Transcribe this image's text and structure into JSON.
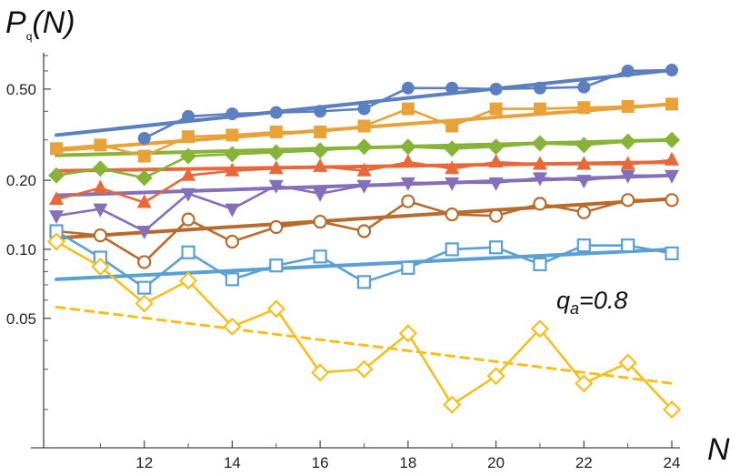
{
  "chart_data": {
    "type": "line",
    "title": "",
    "ylabel": {
      "main": "P",
      "sub": "q",
      "rest": "(N)"
    },
    "xlabel": "N",
    "yscale": "log",
    "xlim": [
      10,
      24
    ],
    "ylim": [
      0.014,
      0.72
    ],
    "x_ticks": [
      12,
      14,
      16,
      18,
      20,
      22,
      24
    ],
    "x_tick_labels": [
      "12",
      "14",
      "16",
      "18",
      "20",
      "22",
      "24"
    ],
    "y_ticks": [
      0.05,
      0.1,
      0.2,
      0.5
    ],
    "y_tick_labels": [
      "0.05",
      "0.10",
      "0.20",
      "0.50"
    ],
    "grid": false,
    "annotation": {
      "main": "q",
      "sub": "a",
      "rest": "=0.8"
    },
    "x": [
      10,
      11,
      12,
      13,
      14,
      15,
      16,
      17,
      18,
      19,
      20,
      21,
      22,
      23,
      24
    ],
    "series": [
      {
        "color": "#5b7fbf",
        "marker": "circle-filled",
        "values": [
          null,
          null,
          0.305,
          0.38,
          0.39,
          0.395,
          0.4,
          0.41,
          0.505,
          0.505,
          0.5,
          0.505,
          0.51,
          0.6,
          0.605
        ],
        "fit": [
          0.315,
          0.605
        ]
      },
      {
        "color": "#e8a23a",
        "marker": "square-filled",
        "values": [
          0.275,
          0.285,
          0.255,
          0.31,
          0.315,
          0.325,
          0.325,
          0.345,
          0.41,
          0.345,
          0.41,
          0.41,
          0.415,
          0.42,
          0.43
        ],
        "fit": [
          0.27,
          0.43
        ]
      },
      {
        "color": "#86b338",
        "marker": "diamond-filled",
        "values": [
          0.21,
          0.225,
          0.205,
          0.255,
          0.26,
          0.265,
          0.27,
          0.28,
          0.28,
          0.275,
          0.28,
          0.29,
          0.285,
          0.295,
          0.3
        ],
        "fit": [
          0.257,
          0.3
        ]
      },
      {
        "color": "#e8683a",
        "marker": "triangle-up-filled",
        "values": [
          0.165,
          0.185,
          0.16,
          0.21,
          0.22,
          0.225,
          0.23,
          0.22,
          0.24,
          0.225,
          0.24,
          0.235,
          0.235,
          0.235,
          0.245
        ],
        "fit": [
          0.22,
          0.24
        ]
      },
      {
        "color": "#8470b8",
        "marker": "triangle-down-filled",
        "values": [
          0.14,
          0.15,
          0.12,
          0.175,
          0.15,
          0.19,
          0.175,
          0.19,
          0.195,
          0.195,
          0.195,
          0.205,
          0.2,
          0.21,
          0.21
        ],
        "fit": [
          0.172,
          0.21
        ]
      },
      {
        "color": "#b86b2c",
        "marker": "circle-open",
        "values": [
          0.12,
          0.115,
          0.088,
          0.135,
          0.108,
          0.125,
          0.132,
          0.12,
          0.162,
          0.142,
          0.14,
          0.158,
          0.145,
          0.164,
          0.164
        ],
        "fit": [
          0.112,
          0.166
        ]
      },
      {
        "color": "#5aa0d2",
        "marker": "square-open",
        "values": [
          0.12,
          0.092,
          0.068,
          0.097,
          0.074,
          0.085,
          0.093,
          0.072,
          0.083,
          0.1,
          0.102,
          0.086,
          0.104,
          0.104,
          0.096
        ],
        "fit": [
          0.074,
          0.1
        ]
      },
      {
        "color": "#f5bf1d",
        "marker": "diamond-open",
        "values": [
          0.108,
          0.084,
          0.058,
          0.073,
          0.046,
          0.055,
          0.029,
          0.03,
          0.043,
          0.021,
          0.028,
          0.045,
          0.026,
          0.032,
          0.02
        ],
        "fit": [
          0.056,
          0.026
        ],
        "fit_dashed": true
      }
    ]
  }
}
